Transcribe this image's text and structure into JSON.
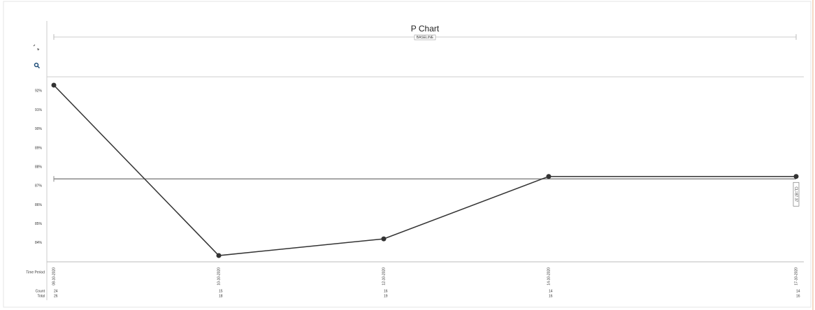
{
  "chart_data": {
    "type": "line",
    "title": "P Chart",
    "subtitle": "BASELINE",
    "x": [
      "08-10-2020",
      "10-10-2020",
      "12-10-2020",
      "14-10-2020",
      "17-10-2020"
    ],
    "values": [
      92.31,
      83.33,
      84.21,
      87.5,
      87.5
    ],
    "color": "#333333",
    "ylim": [
      83,
      92.75
    ],
    "yticks": [
      {
        "value": 84,
        "label": "84%"
      },
      {
        "value": 85,
        "label": "85%"
      },
      {
        "value": 86,
        "label": "86%"
      },
      {
        "value": 87,
        "label": "87%"
      },
      {
        "value": 88,
        "label": "88%"
      },
      {
        "value": 89,
        "label": "89%"
      },
      {
        "value": 90,
        "label": "90%"
      },
      {
        "value": 91,
        "label": "91%"
      },
      {
        "value": 92,
        "label": "92%"
      }
    ],
    "center_line": {
      "value": 87.37,
      "label": "CL=87.37",
      "color": "#8a8a8a"
    },
    "row_labels": [
      "Time Period",
      "Count",
      "Total"
    ],
    "count": [
      24,
      15,
      16,
      14,
      14
    ],
    "total": [
      26,
      18,
      19,
      16,
      16
    ]
  }
}
